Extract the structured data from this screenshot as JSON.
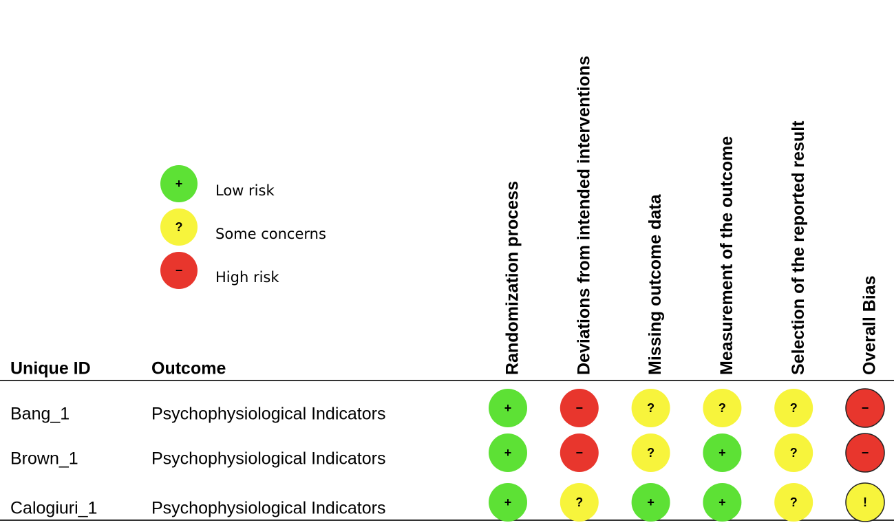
{
  "legend": [
    {
      "symbol": "+",
      "label": "Low risk"
    },
    {
      "symbol": "?",
      "label": "Some concerns"
    },
    {
      "symbol": "−",
      "label": "High risk"
    }
  ],
  "colors": {
    "+": "#5de135",
    "?": "#f7f43c",
    "−": "#e8362d",
    "!": "#f7f43c"
  },
  "table": {
    "columns": [
      "Unique ID",
      "Outcome"
    ],
    "domains": [
      "Randomization process",
      "Deviations from intended interventions",
      "Missing outcome data",
      "Measurement of the outcome",
      "Selection of the reported result",
      "Overall Bias"
    ],
    "rows": [
      {
        "id": "Bang_1",
        "outcome": "Psychophysiological Indicators",
        "judgments": [
          "+",
          "−",
          "?",
          "?",
          "?",
          "−"
        ]
      },
      {
        "id": "Brown_1",
        "outcome": "Psychophysiological Indicators",
        "judgments": [
          "+",
          "−",
          "?",
          "+",
          "?",
          "−"
        ]
      },
      {
        "id": "Calogiuri_1",
        "outcome": "Psychophysiological Indicators",
        "judgments": [
          "+",
          "?",
          "+",
          "+",
          "?",
          "!"
        ]
      }
    ]
  }
}
